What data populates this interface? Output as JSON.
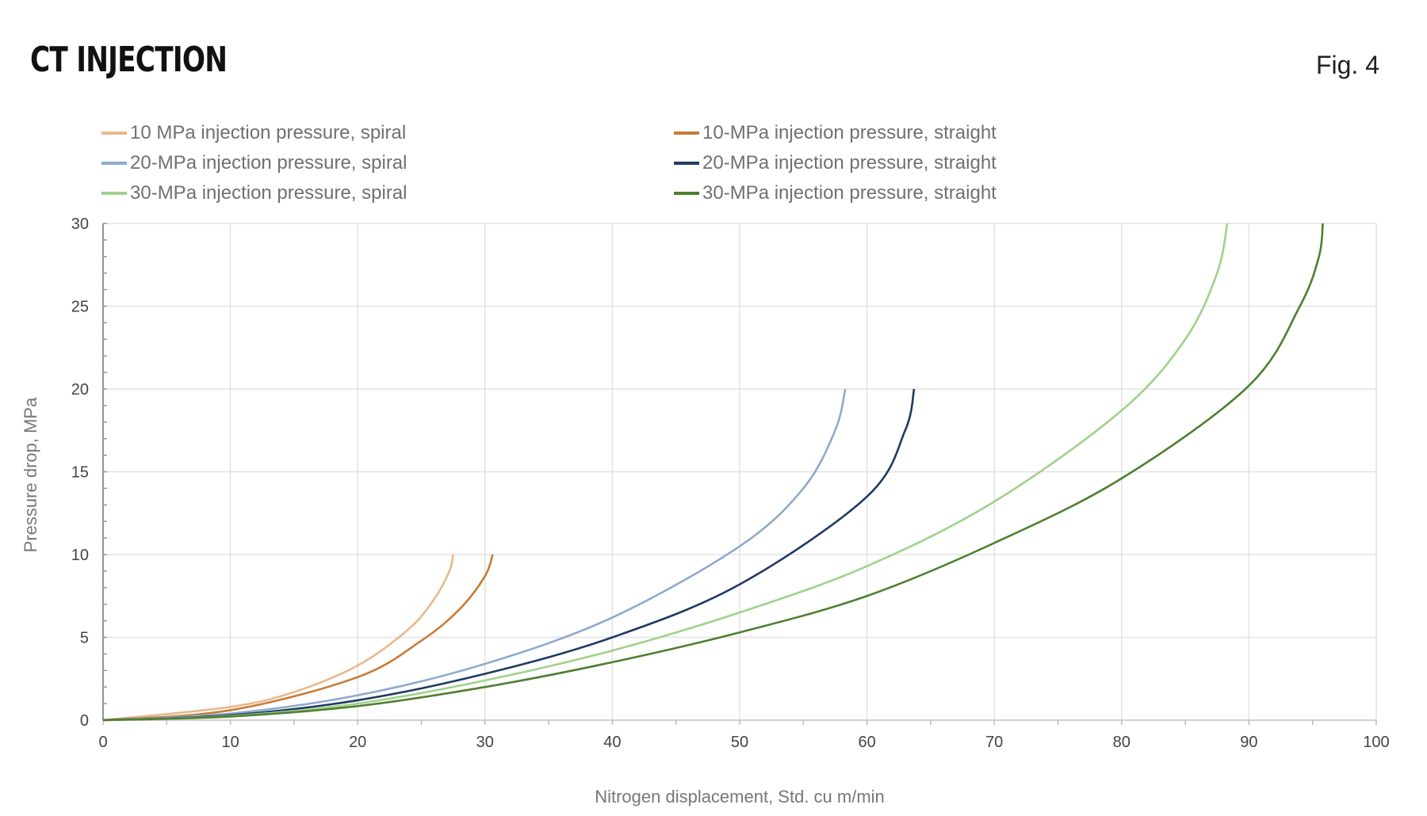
{
  "header": {
    "title": "CT INJECTION",
    "figure_label": "Fig. 4"
  },
  "chart_data": {
    "type": "line",
    "title": "CT INJECTION",
    "xlabel": "Nitrogen displacement, Std. cu m/min",
    "ylabel": "Pressure drop, MPa",
    "xlim": [
      0,
      100
    ],
    "ylim": [
      0,
      30
    ],
    "xticks": [
      0,
      10,
      20,
      30,
      40,
      50,
      60,
      70,
      80,
      90,
      100
    ],
    "yticks": [
      0,
      5,
      10,
      15,
      20,
      25,
      30
    ],
    "grid": true,
    "legend_position": "top",
    "series": [
      {
        "name": "10 MPa injection pressure, spiral",
        "color": "#e7b98c",
        "x": [
          0,
          10,
          15,
          20,
          24,
          26,
          27.2,
          27.5
        ],
        "y": [
          0,
          0.8,
          1.7,
          3.3,
          5.5,
          7.3,
          9,
          10
        ]
      },
      {
        "name": "10-MPa injection pressure, straight",
        "color": "#c97b36",
        "x": [
          0,
          10,
          20,
          25,
          28,
          30,
          30.6
        ],
        "y": [
          0,
          0.6,
          2.6,
          4.8,
          6.7,
          8.7,
          10
        ]
      },
      {
        "name": "20-MPa injection pressure, spiral",
        "color": "#8eaacb",
        "x": [
          0,
          10,
          20,
          30,
          40,
          50,
          55,
          57.5,
          58.3
        ],
        "y": [
          0,
          0.4,
          1.5,
          3.4,
          6.2,
          10.5,
          14,
          17.5,
          20
        ]
      },
      {
        "name": "20-MPa injection pressure, straight",
        "color": "#1f3a62",
        "x": [
          0,
          10,
          20,
          30,
          40,
          50,
          60,
          63,
          63.7
        ],
        "y": [
          0,
          0.3,
          1.2,
          2.8,
          5,
          8.2,
          13.5,
          17.5,
          20
        ]
      },
      {
        "name": "30-MPa injection pressure, spiral",
        "color": "#a0d18b",
        "x": [
          0,
          10,
          20,
          30,
          40,
          50,
          60,
          70,
          80,
          85,
          87.5,
          88.3
        ],
        "y": [
          0,
          0.25,
          1.0,
          2.4,
          4.2,
          6.5,
          9.3,
          13.2,
          18.7,
          23,
          27,
          30
        ]
      },
      {
        "name": "30-MPa injection pressure, straight",
        "color": "#4e7f2f",
        "x": [
          0,
          10,
          20,
          30,
          40,
          50,
          60,
          70,
          80,
          90,
          94,
          95.5,
          95.8
        ],
        "y": [
          0,
          0.22,
          0.85,
          2,
          3.5,
          5.3,
          7.5,
          10.7,
          14.6,
          20.2,
          25,
          28,
          30
        ]
      }
    ]
  }
}
